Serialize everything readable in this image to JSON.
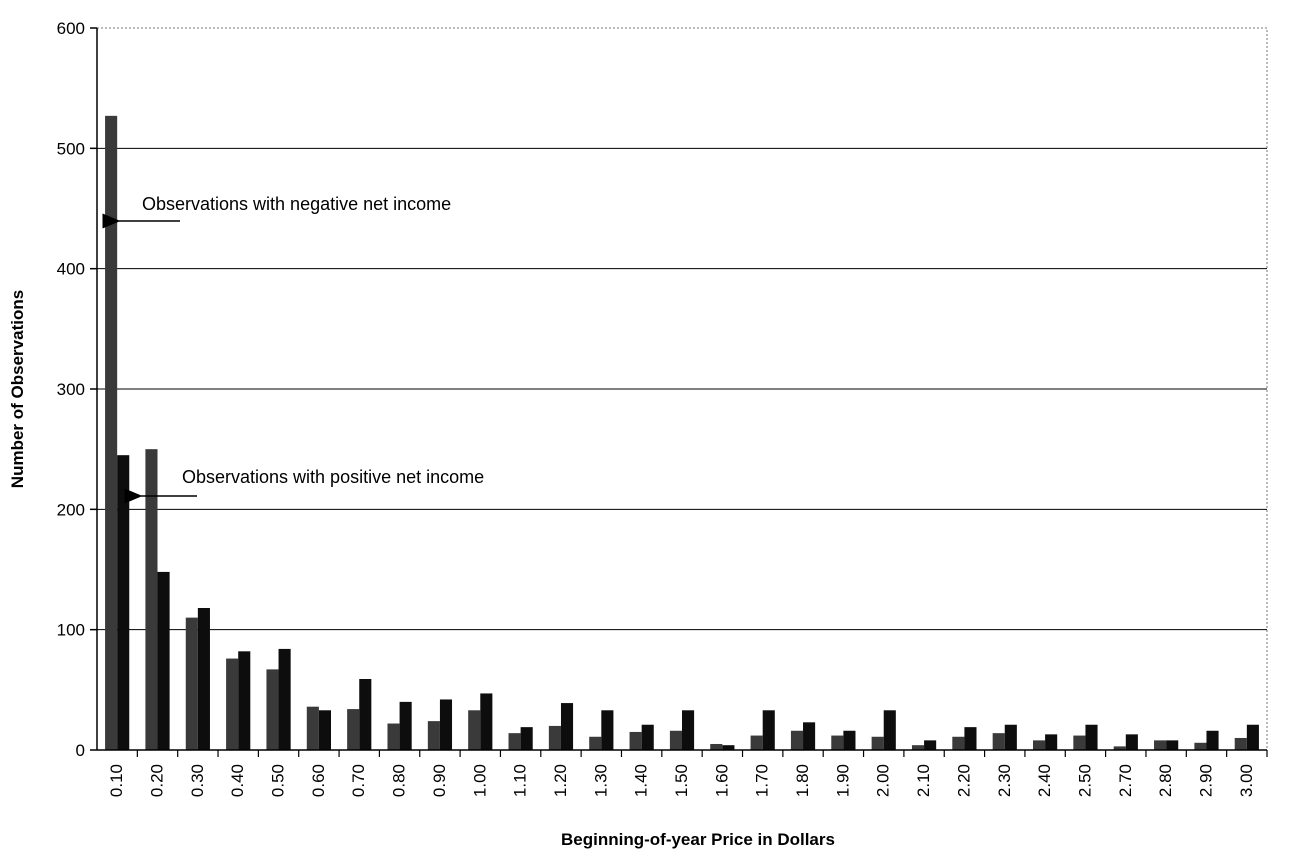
{
  "chart_data": {
    "type": "bar",
    "title": "",
    "xlabel": "Beginning-of-year Price in Dollars",
    "ylabel": "Number of Observations",
    "ylim": [
      0,
      600
    ],
    "yticks": [
      "0",
      "100",
      "200",
      "300",
      "400",
      "500",
      "600"
    ],
    "grid": true,
    "legend": "none",
    "categories": [
      "0.10",
      "0.20",
      "0.30",
      "0.40",
      "0.50",
      "0.60",
      "0.70",
      "0.80",
      "0.90",
      "1.00",
      "1.10",
      "1.20",
      "1.30",
      "1.40",
      "1.50",
      "1.60",
      "1.70",
      "1.80",
      "1.90",
      "2.00",
      "2.10",
      "2.20",
      "2.30",
      "2.40",
      "2.50",
      "2.70",
      "2.80",
      "2.90",
      "3.00"
    ],
    "series": [
      {
        "values": [
          527,
          250,
          110,
          76,
          67,
          36,
          34,
          22,
          24,
          33,
          14,
          20,
          11,
          15,
          16,
          5,
          12,
          16,
          12,
          11,
          4,
          11,
          14,
          8,
          12,
          3,
          8,
          6,
          10
        ],
        "color": "#3a3a3a"
      },
      {
        "values": [
          245,
          148,
          118,
          82,
          84,
          33,
          59,
          40,
          42,
          47,
          19,
          39,
          33,
          21,
          33,
          4,
          33,
          23,
          16,
          33,
          8,
          19,
          21,
          13,
          21,
          13,
          8,
          16,
          21
        ],
        "color": "#0d0d0d"
      }
    ],
    "annotations": [
      {
        "text": "Observations with  negative net income",
        "points_to": "0.10",
        "series": 0
      },
      {
        "text": "Observations with  positive net income",
        "points_to": "0.10",
        "series": 1
      }
    ]
  }
}
